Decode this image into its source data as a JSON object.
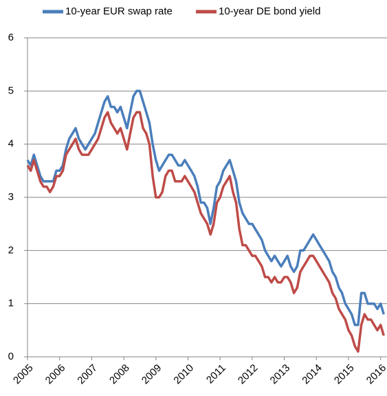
{
  "chart_data": {
    "type": "line",
    "legend": "top",
    "grid": true,
    "xlim": [
      2005,
      2016.2
    ],
    "xticks": [
      2005,
      2006,
      2007,
      2008,
      2009,
      2010,
      2011,
      2012,
      2013,
      2014,
      2015,
      2016
    ],
    "ylim": [
      0,
      6
    ],
    "yticks": [
      0,
      1,
      2,
      3,
      4,
      5,
      6
    ],
    "x": [
      2005,
      2005.1,
      2005.2,
      2005.3,
      2005.4,
      2005.5,
      2005.6,
      2005.7,
      2005.8,
      2005.9,
      2006,
      2006.1,
      2006.2,
      2006.3,
      2006.4,
      2006.5,
      2006.6,
      2006.7,
      2006.8,
      2006.9,
      2007,
      2007.1,
      2007.2,
      2007.3,
      2007.4,
      2007.5,
      2007.6,
      2007.7,
      2007.8,
      2007.9,
      2008,
      2008.1,
      2008.2,
      2008.3,
      2008.4,
      2008.5,
      2008.6,
      2008.7,
      2008.8,
      2008.9,
      2009,
      2009.1,
      2009.2,
      2009.3,
      2009.4,
      2009.5,
      2009.6,
      2009.7,
      2009.8,
      2009.9,
      2010,
      2010.1,
      2010.2,
      2010.3,
      2010.4,
      2010.5,
      2010.6,
      2010.7,
      2010.8,
      2010.9,
      2011,
      2011.1,
      2011.2,
      2011.3,
      2011.4,
      2011.5,
      2011.6,
      2011.7,
      2011.8,
      2011.9,
      2012,
      2012.1,
      2012.2,
      2012.3,
      2012.4,
      2012.5,
      2012.6,
      2012.7,
      2012.8,
      2012.9,
      2013,
      2013.1,
      2013.2,
      2013.3,
      2013.4,
      2013.5,
      2013.6,
      2013.7,
      2013.8,
      2013.9,
      2014,
      2014.1,
      2014.2,
      2014.3,
      2014.4,
      2014.5,
      2014.6,
      2014.7,
      2014.8,
      2014.9,
      2015,
      2015.1,
      2015.2,
      2015.3,
      2015.4,
      2015.5,
      2015.6,
      2015.7,
      2015.8,
      2015.9,
      2016,
      2016.1
    ],
    "series": [
      {
        "name": "10-year EUR swap rate",
        "color": "#4a7ebb",
        "values": [
          3.7,
          3.6,
          3.8,
          3.6,
          3.4,
          3.3,
          3.3,
          3.3,
          3.3,
          3.5,
          3.5,
          3.6,
          3.9,
          4.1,
          4.2,
          4.3,
          4.1,
          4.0,
          3.9,
          4.0,
          4.1,
          4.2,
          4.4,
          4.6,
          4.8,
          4.9,
          4.7,
          4.7,
          4.6,
          4.7,
          4.5,
          4.3,
          4.6,
          4.9,
          5.0,
          5.0,
          4.8,
          4.6,
          4.4,
          4.0,
          3.7,
          3.5,
          3.6,
          3.7,
          3.8,
          3.8,
          3.7,
          3.6,
          3.6,
          3.7,
          3.6,
          3.5,
          3.4,
          3.2,
          2.9,
          2.9,
          2.8,
          2.5,
          2.8,
          3.2,
          3.3,
          3.5,
          3.6,
          3.7,
          3.5,
          3.3,
          2.9,
          2.7,
          2.6,
          2.5,
          2.5,
          2.4,
          2.3,
          2.2,
          2.0,
          1.9,
          1.8,
          1.9,
          1.8,
          1.7,
          1.8,
          1.9,
          1.7,
          1.6,
          1.7,
          2.0,
          2.0,
          2.1,
          2.2,
          2.3,
          2.2,
          2.1,
          2.0,
          1.9,
          1.8,
          1.6,
          1.5,
          1.3,
          1.2,
          1.0,
          0.9,
          0.8,
          0.6,
          0.6,
          1.2,
          1.2,
          1.0,
          1.0,
          1.0,
          0.9,
          1.0,
          0.8
        ]
      },
      {
        "name": "10-year DE bond yield",
        "color": "#be4b48",
        "values": [
          3.6,
          3.5,
          3.7,
          3.5,
          3.3,
          3.2,
          3.2,
          3.1,
          3.2,
          3.4,
          3.4,
          3.5,
          3.8,
          3.9,
          4.0,
          4.1,
          3.9,
          3.8,
          3.8,
          3.8,
          3.9,
          4.0,
          4.1,
          4.3,
          4.5,
          4.6,
          4.4,
          4.3,
          4.2,
          4.3,
          4.1,
          3.9,
          4.2,
          4.5,
          4.6,
          4.6,
          4.3,
          4.2,
          4.0,
          3.4,
          3.0,
          3.0,
          3.1,
          3.4,
          3.5,
          3.5,
          3.3,
          3.3,
          3.3,
          3.4,
          3.3,
          3.2,
          3.1,
          2.9,
          2.7,
          2.6,
          2.5,
          2.3,
          2.5,
          2.9,
          3.0,
          3.2,
          3.3,
          3.4,
          3.1,
          2.9,
          2.4,
          2.1,
          2.1,
          2.0,
          1.9,
          1.9,
          1.8,
          1.7,
          1.5,
          1.5,
          1.4,
          1.5,
          1.4,
          1.4,
          1.5,
          1.5,
          1.4,
          1.2,
          1.3,
          1.6,
          1.7,
          1.8,
          1.9,
          1.9,
          1.8,
          1.7,
          1.6,
          1.5,
          1.4,
          1.2,
          1.1,
          0.9,
          0.8,
          0.7,
          0.5,
          0.4,
          0.2,
          0.1,
          0.6,
          0.8,
          0.7,
          0.7,
          0.6,
          0.5,
          0.6,
          0.4
        ]
      }
    ]
  }
}
